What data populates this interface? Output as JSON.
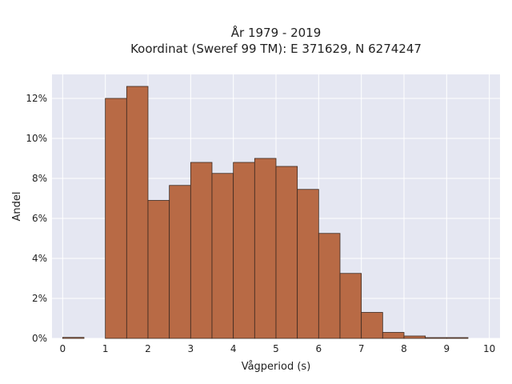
{
  "chart_data": {
    "type": "bar",
    "title": "År 1979 - 2019",
    "subtitle": "Koordinat (Sweref 99 TM): E 371629, N 6274247",
    "xlabel": "Vågperiod (s)",
    "ylabel": "Andel",
    "bin_width": 0.5,
    "bins_start": [
      0,
      0.5,
      1,
      1.5,
      2,
      2.5,
      3,
      3.5,
      4,
      4.5,
      5,
      5.5,
      6,
      6.5,
      7,
      7.5,
      8,
      8.5,
      9,
      9.5
    ],
    "values": [
      0.05,
      0,
      12.0,
      12.6,
      6.9,
      7.65,
      8.8,
      8.25,
      8.8,
      9.0,
      8.6,
      7.45,
      5.25,
      3.25,
      1.3,
      0.3,
      0.12,
      0.04,
      0.04,
      0
    ],
    "xlim": [
      -0.25,
      10.25
    ],
    "ylim": [
      0,
      13.2
    ],
    "x_ticks": [
      0,
      1,
      2,
      3,
      4,
      5,
      6,
      7,
      8,
      9,
      10
    ],
    "y_ticks": [
      0,
      2,
      4,
      6,
      8,
      10,
      12
    ],
    "y_tick_labels": [
      "0%",
      "2%",
      "4%",
      "6%",
      "8%",
      "10%",
      "12%"
    ],
    "grid": true,
    "colors": {
      "bar": "#b86a45",
      "bar_edge": "#3b2a20",
      "plot_bg": "#e5e7f2",
      "grid": "#ffffff"
    }
  }
}
